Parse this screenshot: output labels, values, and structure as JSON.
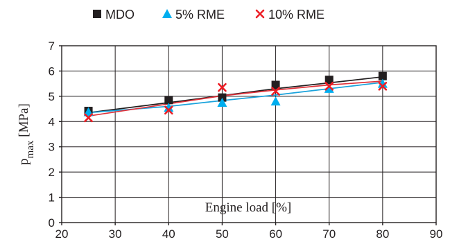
{
  "chart_data": {
    "type": "scatter",
    "xlabel": "Engine load [%]",
    "ylabel_main": "p",
    "ylabel_sub": "max",
    "ylabel_unit": " [MPa]",
    "xlim": [
      20,
      90
    ],
    "ylim": [
      0,
      7
    ],
    "x_ticks": [
      20,
      30,
      40,
      50,
      60,
      70,
      80,
      90
    ],
    "y_ticks": [
      0,
      1,
      2,
      3,
      4,
      5,
      6,
      7
    ],
    "grid": true,
    "legend_position": "top",
    "series": [
      {
        "name": "MDO",
        "marker": "square",
        "color": "#231f20",
        "x": [
          25,
          40,
          50,
          60,
          70,
          80
        ],
        "values": [
          4.42,
          4.85,
          4.95,
          5.45,
          5.65,
          5.8
        ],
        "trend": [
          [
            25,
            4.35
          ],
          [
            40,
            4.75
          ],
          [
            50,
            5.03
          ],
          [
            60,
            5.3
          ],
          [
            70,
            5.53
          ],
          [
            80,
            5.77
          ]
        ]
      },
      {
        "name": "5% RME",
        "marker": "triangle",
        "color": "#00aeef",
        "x": [
          25,
          40,
          50,
          60,
          70,
          80
        ],
        "values": [
          4.38,
          4.55,
          4.75,
          4.8,
          5.3,
          5.5
        ],
        "trend": [
          [
            25,
            4.35
          ],
          [
            40,
            4.6
          ],
          [
            50,
            4.83
          ],
          [
            60,
            5.05
          ],
          [
            70,
            5.3
          ],
          [
            80,
            5.55
          ]
        ]
      },
      {
        "name": "10% RME",
        "marker": "x",
        "color": "#ed1c24",
        "x": [
          25,
          40,
          50,
          60,
          70,
          80
        ],
        "values": [
          4.15,
          4.45,
          5.35,
          5.2,
          5.4,
          5.4
        ],
        "trend": [
          [
            25,
            4.22
          ],
          [
            40,
            4.7
          ],
          [
            50,
            5.02
          ],
          [
            60,
            5.25
          ],
          [
            70,
            5.45
          ],
          [
            80,
            5.6
          ]
        ]
      }
    ]
  }
}
